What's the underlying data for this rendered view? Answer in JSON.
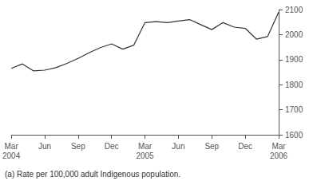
{
  "chart_data": {
    "type": "line",
    "categories": [
      "Mar\n2004",
      null,
      null,
      "Jun",
      null,
      null,
      "Sep",
      null,
      null,
      "Dec",
      null,
      null,
      "Mar\n2005",
      null,
      null,
      "Jun",
      null,
      null,
      "Sep",
      null,
      null,
      "Dec",
      null,
      null,
      "Mar\n2006"
    ],
    "values": [
      1865,
      1883,
      1855,
      1858,
      1868,
      1885,
      1905,
      1928,
      1948,
      1963,
      1942,
      1958,
      2048,
      2052,
      2048,
      2054,
      2060,
      2040,
      2020,
      2048,
      2030,
      2025,
      1982,
      1992,
      2090
    ],
    "color": "#333333",
    "ylim": [
      1600,
      2100
    ],
    "yticks": [
      1600,
      1700,
      1800,
      1900,
      2000,
      2100
    ],
    "grid": false,
    "footnote": "(a) Rate per 100,000 adult Indigenous population."
  }
}
